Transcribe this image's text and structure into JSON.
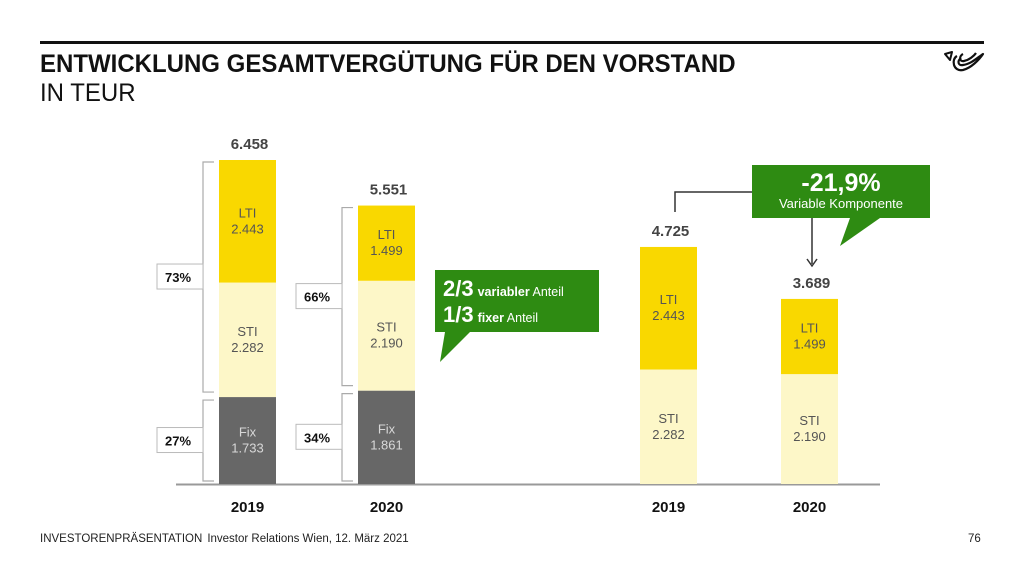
{
  "header": {
    "title": "ENTWICKLUNG GESAMTVERGÜTUNG FÜR DEN VORSTAND",
    "subtitle": "IN TEUR"
  },
  "logo": {
    "icon": "posthorn-logo-icon"
  },
  "colors": {
    "lti": "#f9d800",
    "sti": "#fdf7c8",
    "fix": "#676767",
    "callout": "#2e8b12",
    "axis": "#999999",
    "bracket": "#aaaaaa"
  },
  "chart_data": [
    {
      "type": "bar",
      "stacked": true,
      "title": "Gesamtvergütung",
      "categories": [
        "2019",
        "2020"
      ],
      "series": [
        {
          "name": "Fix",
          "values": [
            1733,
            1861
          ]
        },
        {
          "name": "STI",
          "values": [
            2282,
            2190
          ]
        },
        {
          "name": "LTI",
          "values": [
            2443,
            1499
          ]
        }
      ],
      "totals": [
        "6.458",
        "5.551"
      ],
      "segment_labels": {
        "Fix": [
          "1.733",
          "1.861"
        ],
        "STI": [
          "2.282",
          "2.190"
        ],
        "LTI": [
          "2.443",
          "1.499"
        ]
      },
      "brackets": {
        "variable_pct": [
          "73%",
          "66%"
        ],
        "fix_pct": [
          "27%",
          "34%"
        ]
      },
      "unit": "TEUR"
    },
    {
      "type": "bar",
      "stacked": true,
      "title": "Variable Komponente",
      "categories": [
        "2019",
        "2020"
      ],
      "series": [
        {
          "name": "STI",
          "values": [
            2282,
            2190
          ]
        },
        {
          "name": "LTI",
          "values": [
            2443,
            1499
          ]
        }
      ],
      "totals": [
        "4.725",
        "3.689"
      ],
      "segment_labels": {
        "STI": [
          "2.282",
          "2.190"
        ],
        "LTI": [
          "2.443",
          "1.499"
        ]
      },
      "unit": "TEUR"
    }
  ],
  "callouts": {
    "share": {
      "line1_big": "2/3",
      "line1_bold": "variabler",
      "line1_rest": "Anteil",
      "line2_big": "1/3",
      "line2_bold": "fixer",
      "line2_rest": "Anteil"
    },
    "change": {
      "value": "-21,9%",
      "label": "Variable Komponente"
    }
  },
  "footer": {
    "section": "INVESTORENPRÄSENTATION",
    "info": "Investor Relations Wien, 12. März 2021",
    "page": "76"
  }
}
